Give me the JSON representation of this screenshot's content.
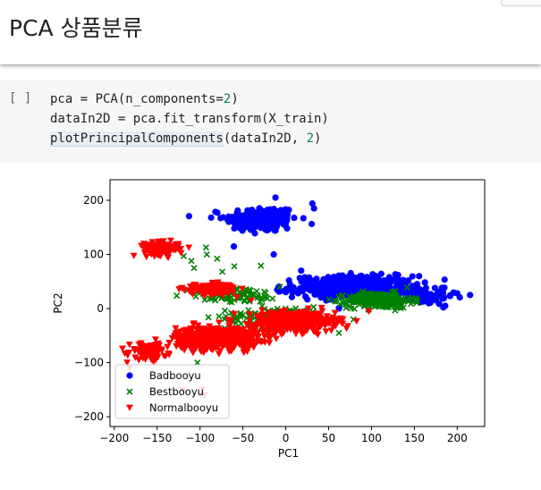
{
  "header": {
    "title": "PCA 상품분류"
  },
  "cell": {
    "run_indicator": "[ ]",
    "lines": [
      {
        "before": "pca = PCA(n_components=",
        "num": "2",
        "after": ")"
      },
      {
        "text": "dataIn2D = pca.fit_transform(X_train)"
      },
      {
        "fn": "plotPrincipalComponents",
        "mid": "(dataIn2D, ",
        "num": "2",
        "after": ")"
      }
    ]
  },
  "chart_data": {
    "type": "scatter",
    "title": "",
    "xlabel": "PC1",
    "ylabel": "PC2",
    "xlim": [
      -205,
      232
    ],
    "ylim": [
      -218,
      238
    ],
    "xticks": [
      -200,
      -150,
      -100,
      -50,
      0,
      50,
      100,
      150,
      200
    ],
    "yticks": [
      -200,
      -100,
      0,
      100,
      200
    ],
    "legend_position": "lower-left",
    "series": [
      {
        "name": "Badbooyu",
        "color": "#0000ff",
        "marker": "circle",
        "clusters": [
          {
            "center": [
              -28,
              165
            ],
            "spread": [
              42,
              24
            ],
            "count": 190
          },
          {
            "center": [
              80,
              40
            ],
            "spread": [
              70,
              20
            ],
            "count": 450
          },
          {
            "center": [
              160,
              20
            ],
            "spread": [
              35,
              12
            ],
            "count": 70
          }
        ],
        "points": [
          [
            -76,
            167
          ],
          [
            -87,
            168
          ],
          [
            31,
            194
          ],
          [
            33,
            185
          ],
          [
            -12,
            205
          ],
          [
            215,
            25
          ],
          [
            200,
            28
          ],
          [
            -36,
            139
          ],
          [
            62,
            0
          ],
          [
            18,
            70
          ],
          [
            -14,
            100
          ],
          [
            -10,
            35
          ],
          [
            186,
            5
          ],
          [
            174,
            38
          ]
        ]
      },
      {
        "name": "Bestbooyu",
        "color": "#008000",
        "marker": "x",
        "clusters": [
          {
            "center": [
              110,
              15
            ],
            "spread": [
              38,
              14
            ],
            "count": 300
          },
          {
            "center": [
              -60,
              25
            ],
            "spread": [
              55,
              15
            ],
            "count": 90
          },
          {
            "center": [
              -10,
              -15
            ],
            "spread": [
              60,
              18
            ],
            "count": 120
          }
        ],
        "points": [
          [
            -93,
            113
          ],
          [
            -92,
            100
          ],
          [
            -80,
            92
          ],
          [
            -107,
            75
          ],
          [
            -110,
            88
          ],
          [
            -74,
            68
          ],
          [
            -71,
            -4
          ],
          [
            -29,
            79
          ],
          [
            -119,
            97
          ],
          [
            -103,
            -100
          ],
          [
            -60,
            78
          ],
          [
            62,
            -45
          ],
          [
            79,
            -20
          ],
          [
            -7,
            40
          ]
        ]
      },
      {
        "name": "Normalbooyu",
        "color": "#ff0000",
        "marker": "triangle-down",
        "clusters": [
          {
            "center": [
              -145,
              110
            ],
            "spread": [
              20,
              12
            ],
            "count": 150
          },
          {
            "center": [
              -88,
              35
            ],
            "spread": [
              30,
              10
            ],
            "count": 130
          },
          {
            "center": [
              -80,
              -55
            ],
            "spread": [
              48,
              20
            ],
            "count": 600
          },
          {
            "center": [
              10,
              -25
            ],
            "spread": [
              48,
              18
            ],
            "count": 450
          },
          {
            "center": [
              -160,
              -80
            ],
            "spread": [
              22,
              15
            ],
            "count": 90
          }
        ],
        "points": [
          [
            -97,
            -150
          ],
          [
            -95,
            -160
          ],
          [
            -182,
            -110
          ],
          [
            -185,
            -100
          ],
          [
            -120,
            -150
          ],
          [
            -60,
            -10
          ],
          [
            -40,
            15
          ]
        ]
      }
    ]
  }
}
